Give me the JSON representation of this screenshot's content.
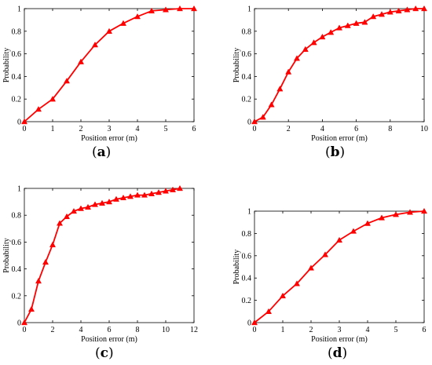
{
  "figure": {
    "labels": {
      "a": "a",
      "b": "b",
      "c": "c",
      "d": "d"
    },
    "series_color": "#ff0000"
  },
  "chart_data": [
    {
      "id": "a",
      "type": "line",
      "panel_label": "a",
      "xlabel": "Position error (m)",
      "ylabel": "Probability",
      "xlim": [
        0,
        6
      ],
      "ylim": [
        0,
        1
      ],
      "xticks": [
        0,
        1,
        2,
        3,
        4,
        5,
        6
      ],
      "yticks": [
        0,
        0.2,
        0.4,
        0.6,
        0.8,
        1
      ],
      "marker": "triangle",
      "color": "#ff0000",
      "x": [
        0,
        0.5,
        1,
        1.5,
        2,
        2.5,
        3,
        3.5,
        4,
        4.5,
        5,
        5.5,
        6
      ],
      "y": [
        0,
        0.11,
        0.2,
        0.36,
        0.53,
        0.68,
        0.8,
        0.87,
        0.93,
        0.98,
        0.99,
        1,
        1
      ]
    },
    {
      "id": "b",
      "type": "line",
      "panel_label": "b",
      "xlabel": "Position error (m)",
      "ylabel": "Probability",
      "xlim": [
        0,
        10
      ],
      "ylim": [
        0,
        1
      ],
      "xticks": [
        0,
        2,
        4,
        6,
        8,
        10
      ],
      "yticks": [
        0,
        0.2,
        0.4,
        0.6,
        0.8,
        1
      ],
      "marker": "triangle",
      "color": "#ff0000",
      "x": [
        0,
        0.5,
        1,
        1.5,
        2,
        2.5,
        3,
        3.5,
        4,
        4.5,
        5,
        5.5,
        6,
        6.5,
        7,
        7.5,
        8,
        8.5,
        9,
        9.5,
        10
      ],
      "y": [
        0,
        0.04,
        0.15,
        0.29,
        0.44,
        0.56,
        0.64,
        0.7,
        0.75,
        0.79,
        0.83,
        0.85,
        0.87,
        0.88,
        0.93,
        0.95,
        0.97,
        0.98,
        0.99,
        1,
        1
      ]
    },
    {
      "id": "c",
      "type": "line",
      "panel_label": "c",
      "xlabel": "Position error (m)",
      "ylabel": "Probability",
      "xlim": [
        0,
        12
      ],
      "ylim": [
        0,
        1
      ],
      "xticks": [
        0,
        2,
        4,
        6,
        8,
        10,
        12
      ],
      "yticks": [
        0,
        0.2,
        0.4,
        0.6,
        0.8,
        1
      ],
      "marker": "triangle",
      "color": "#ff0000",
      "x": [
        0,
        0.5,
        1,
        1.5,
        2,
        2.5,
        3,
        3.5,
        4,
        4.5,
        5,
        5.5,
        6,
        6.5,
        7,
        7.5,
        8,
        8.5,
        9,
        9.5,
        10,
        10.5,
        11
      ],
      "y": [
        0,
        0.1,
        0.31,
        0.45,
        0.58,
        0.74,
        0.79,
        0.83,
        0.85,
        0.86,
        0.88,
        0.89,
        0.9,
        0.92,
        0.93,
        0.94,
        0.95,
        0.95,
        0.96,
        0.97,
        0.98,
        0.99,
        1
      ]
    },
    {
      "id": "d",
      "type": "line",
      "panel_label": "d",
      "xlabel": "Position error (m)",
      "ylabel": "Probability",
      "xlim": [
        0,
        6
      ],
      "ylim": [
        0,
        1
      ],
      "xticks": [
        0,
        1,
        2,
        3,
        4,
        5,
        6
      ],
      "yticks": [
        0,
        0.2,
        0.4,
        0.6,
        0.8,
        1
      ],
      "marker": "triangle",
      "color": "#ff0000",
      "x": [
        0,
        0.5,
        1,
        1.5,
        2,
        2.5,
        3,
        3.5,
        4,
        4.5,
        5,
        5.5,
        6
      ],
      "y": [
        0,
        0.1,
        0.24,
        0.35,
        0.49,
        0.61,
        0.74,
        0.82,
        0.89,
        0.94,
        0.97,
        0.99,
        1
      ]
    }
  ]
}
